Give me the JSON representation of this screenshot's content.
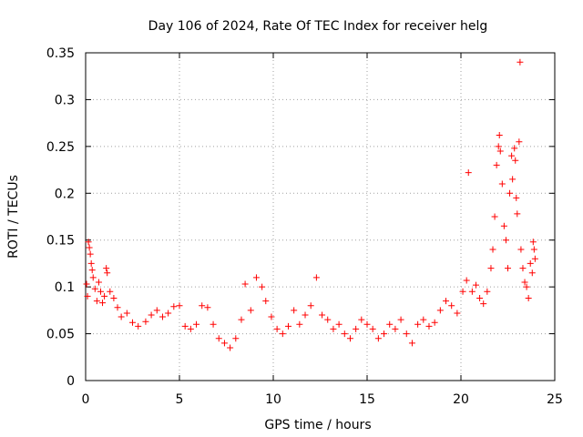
{
  "chart_data": {
    "type": "scatter",
    "title": "Day 106 of 2024, Rate Of TEC Index for receiver helg",
    "xlabel": "GPS time / hours",
    "ylabel": "ROTI / TECUs",
    "xlim": [
      0,
      25
    ],
    "ylim": [
      0,
      0.35
    ],
    "xticks": [
      0,
      5,
      10,
      15,
      20,
      25
    ],
    "yticks": [
      0,
      0.05,
      0.1,
      0.15,
      0.2,
      0.25,
      0.3,
      0.35
    ],
    "xtick_labels": [
      "0",
      "5",
      "10",
      "15",
      "20",
      "25"
    ],
    "ytick_labels": [
      "0",
      "0.05",
      "0.1",
      "0.15",
      "0.2",
      "0.25",
      "0.3",
      "0.35"
    ],
    "grid": true,
    "marker": "+",
    "color": "#ff0000",
    "series": [
      {
        "name": "ROTI",
        "points": [
          [
            0.05,
            0.103
          ],
          [
            0.1,
            0.09
          ],
          [
            0.15,
            0.148
          ],
          [
            0.2,
            0.142
          ],
          [
            0.25,
            0.135
          ],
          [
            0.3,
            0.125
          ],
          [
            0.35,
            0.118
          ],
          [
            0.4,
            0.11
          ],
          [
            0.5,
            0.098
          ],
          [
            0.6,
            0.085
          ],
          [
            0.7,
            0.105
          ],
          [
            0.8,
            0.095
          ],
          [
            0.9,
            0.083
          ],
          [
            1.0,
            0.09
          ],
          [
            1.1,
            0.12
          ],
          [
            1.15,
            0.115
          ],
          [
            1.3,
            0.095
          ],
          [
            1.5,
            0.088
          ],
          [
            1.7,
            0.078
          ],
          [
            1.9,
            0.068
          ],
          [
            2.2,
            0.072
          ],
          [
            2.5,
            0.062
          ],
          [
            2.8,
            0.058
          ],
          [
            3.2,
            0.063
          ],
          [
            3.5,
            0.07
          ],
          [
            3.8,
            0.075
          ],
          [
            4.1,
            0.068
          ],
          [
            4.4,
            0.072
          ],
          [
            4.7,
            0.079
          ],
          [
            5.0,
            0.08
          ],
          [
            5.3,
            0.058
          ],
          [
            5.6,
            0.055
          ],
          [
            5.9,
            0.06
          ],
          [
            6.2,
            0.08
          ],
          [
            6.5,
            0.078
          ],
          [
            6.8,
            0.06
          ],
          [
            7.1,
            0.045
          ],
          [
            7.4,
            0.04
          ],
          [
            7.7,
            0.035
          ],
          [
            8.0,
            0.045
          ],
          [
            8.3,
            0.065
          ],
          [
            8.5,
            0.103
          ],
          [
            8.8,
            0.075
          ],
          [
            9.1,
            0.11
          ],
          [
            9.4,
            0.1
          ],
          [
            9.6,
            0.085
          ],
          [
            9.9,
            0.068
          ],
          [
            10.2,
            0.055
          ],
          [
            10.5,
            0.05
          ],
          [
            10.8,
            0.058
          ],
          [
            11.1,
            0.075
          ],
          [
            11.4,
            0.06
          ],
          [
            11.7,
            0.07
          ],
          [
            12.0,
            0.08
          ],
          [
            12.3,
            0.11
          ],
          [
            12.6,
            0.07
          ],
          [
            12.9,
            0.065
          ],
          [
            13.2,
            0.055
          ],
          [
            13.5,
            0.06
          ],
          [
            13.8,
            0.05
          ],
          [
            14.1,
            0.045
          ],
          [
            14.4,
            0.055
          ],
          [
            14.7,
            0.065
          ],
          [
            15.0,
            0.06
          ],
          [
            15.3,
            0.055
          ],
          [
            15.6,
            0.045
          ],
          [
            15.9,
            0.05
          ],
          [
            16.2,
            0.06
          ],
          [
            16.5,
            0.055
          ],
          [
            16.8,
            0.065
          ],
          [
            17.1,
            0.05
          ],
          [
            17.4,
            0.04
          ],
          [
            17.7,
            0.06
          ],
          [
            18.0,
            0.065
          ],
          [
            18.3,
            0.058
          ],
          [
            18.6,
            0.062
          ],
          [
            18.9,
            0.075
          ],
          [
            19.2,
            0.085
          ],
          [
            19.5,
            0.08
          ],
          [
            19.8,
            0.072
          ],
          [
            20.1,
            0.095
          ],
          [
            20.3,
            0.107
          ],
          [
            20.4,
            0.222
          ],
          [
            20.6,
            0.095
          ],
          [
            20.8,
            0.102
          ],
          [
            21.0,
            0.088
          ],
          [
            21.2,
            0.082
          ],
          [
            21.4,
            0.095
          ],
          [
            21.6,
            0.12
          ],
          [
            21.7,
            0.14
          ],
          [
            21.8,
            0.175
          ],
          [
            21.9,
            0.23
          ],
          [
            22.0,
            0.25
          ],
          [
            22.05,
            0.262
          ],
          [
            22.1,
            0.245
          ],
          [
            22.2,
            0.21
          ],
          [
            22.3,
            0.165
          ],
          [
            22.4,
            0.15
          ],
          [
            22.5,
            0.12
          ],
          [
            22.6,
            0.2
          ],
          [
            22.7,
            0.24
          ],
          [
            22.75,
            0.215
          ],
          [
            22.85,
            0.248
          ],
          [
            22.9,
            0.235
          ],
          [
            22.95,
            0.195
          ],
          [
            23.0,
            0.178
          ],
          [
            23.1,
            0.255
          ],
          [
            23.15,
            0.34
          ],
          [
            23.2,
            0.14
          ],
          [
            23.3,
            0.12
          ],
          [
            23.4,
            0.105
          ],
          [
            23.5,
            0.1
          ],
          [
            23.6,
            0.088
          ],
          [
            23.7,
            0.125
          ],
          [
            23.8,
            0.115
          ],
          [
            23.85,
            0.148
          ],
          [
            23.9,
            0.14
          ],
          [
            23.95,
            0.13
          ]
        ]
      }
    ]
  }
}
